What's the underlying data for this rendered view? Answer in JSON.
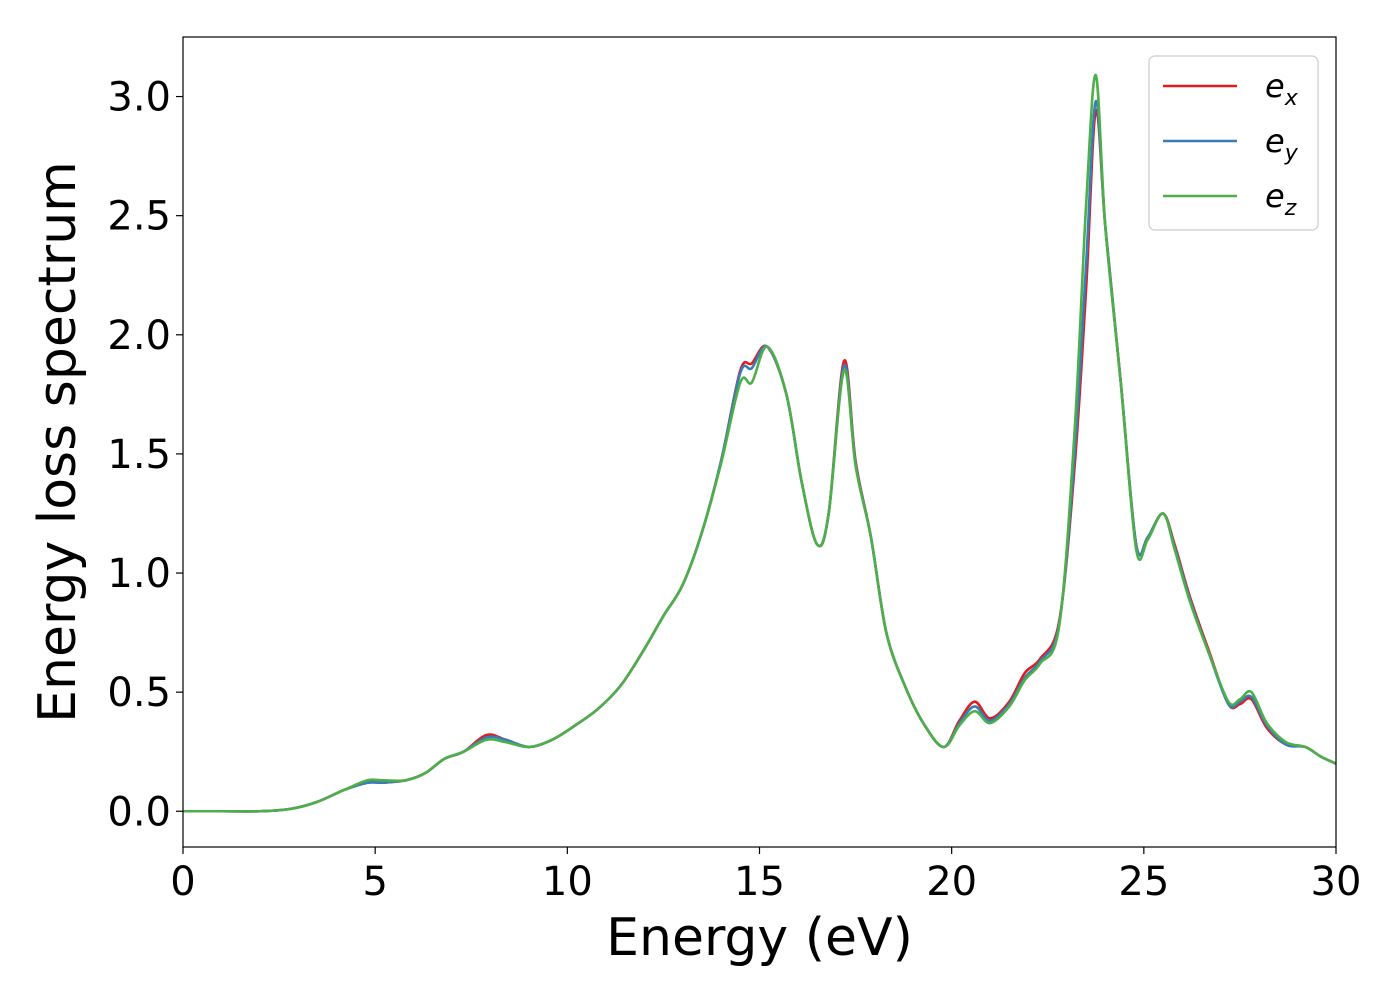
{
  "chart_data": {
    "type": "line",
    "xlabel": "Energy (eV)",
    "ylabel": "Energy loss spectrum",
    "xlim": [
      0,
      30
    ],
    "ylim": [
      -0.15,
      3.25
    ],
    "xticks": [
      "0",
      "5",
      "10",
      "15",
      "20",
      "25",
      "30"
    ],
    "yticks": [
      "0.0",
      "0.5",
      "1.0",
      "1.5",
      "2.0",
      "2.5",
      "3.0"
    ],
    "grid": false,
    "legend_position": "top-right",
    "series": [
      {
        "name": "e_x",
        "legend_base": "e",
        "legend_sub": "x",
        "color": "#e41a1c",
        "x": [
          0,
          1,
          2,
          2.8,
          3.5,
          4.2,
          4.8,
          5.2,
          5.8,
          6.3,
          6.8,
          7.3,
          7.9,
          8.4,
          9.0,
          9.6,
          10.2,
          10.8,
          11.4,
          12.0,
          12.5,
          13.0,
          13.5,
          14.0,
          14.5,
          14.8,
          15.2,
          15.7,
          16.1,
          16.5,
          16.8,
          17.2,
          17.5,
          17.9,
          18.3,
          18.8,
          19.3,
          19.8,
          20.2,
          20.6,
          21.0,
          21.5,
          21.9,
          22.3,
          22.8,
          23.2,
          23.5,
          23.75,
          24.0,
          24.4,
          24.8,
          25.1,
          25.5,
          25.8,
          26.2,
          26.7,
          27.2,
          27.5,
          27.8,
          28.2,
          28.7,
          29.2,
          29.6,
          30.0
        ],
        "y": [
          0.0,
          0.0,
          0.0,
          0.01,
          0.04,
          0.09,
          0.12,
          0.12,
          0.13,
          0.16,
          0.22,
          0.25,
          0.32,
          0.3,
          0.27,
          0.3,
          0.36,
          0.43,
          0.53,
          0.68,
          0.82,
          0.95,
          1.17,
          1.47,
          1.85,
          1.88,
          1.95,
          1.75,
          1.38,
          1.12,
          1.25,
          1.89,
          1.47,
          1.15,
          0.75,
          0.52,
          0.36,
          0.27,
          0.38,
          0.46,
          0.39,
          0.46,
          0.58,
          0.64,
          0.8,
          1.45,
          2.2,
          2.94,
          2.45,
          1.8,
          1.12,
          1.15,
          1.25,
          1.12,
          0.9,
          0.67,
          0.45,
          0.45,
          0.47,
          0.35,
          0.28,
          0.27,
          0.23,
          0.2
        ]
      },
      {
        "name": "e_y",
        "legend_base": "e",
        "legend_sub": "y",
        "color": "#377eb8",
        "x": [
          0,
          1,
          2,
          2.8,
          3.5,
          4.2,
          4.8,
          5.2,
          5.8,
          6.3,
          6.8,
          7.3,
          7.9,
          8.4,
          9.0,
          9.6,
          10.2,
          10.8,
          11.4,
          12.0,
          12.5,
          13.0,
          13.5,
          14.0,
          14.5,
          14.8,
          15.2,
          15.7,
          16.1,
          16.5,
          16.8,
          17.2,
          17.5,
          17.9,
          18.3,
          18.8,
          19.3,
          19.8,
          20.2,
          20.6,
          21.0,
          21.5,
          21.9,
          22.3,
          22.8,
          23.2,
          23.5,
          23.75,
          24.0,
          24.4,
          24.8,
          25.1,
          25.5,
          25.8,
          26.2,
          26.7,
          27.2,
          27.5,
          27.8,
          28.2,
          28.7,
          29.2,
          29.6,
          30.0
        ],
        "y": [
          0.0,
          0.0,
          0.0,
          0.01,
          0.04,
          0.09,
          0.12,
          0.12,
          0.13,
          0.16,
          0.22,
          0.25,
          0.31,
          0.3,
          0.27,
          0.3,
          0.36,
          0.43,
          0.53,
          0.68,
          0.82,
          0.95,
          1.17,
          1.47,
          1.84,
          1.86,
          1.95,
          1.75,
          1.38,
          1.12,
          1.25,
          1.87,
          1.46,
          1.15,
          0.75,
          0.52,
          0.36,
          0.27,
          0.37,
          0.44,
          0.38,
          0.45,
          0.56,
          0.63,
          0.79,
          1.5,
          2.3,
          2.98,
          2.45,
          1.8,
          1.12,
          1.15,
          1.25,
          1.11,
          0.89,
          0.66,
          0.45,
          0.46,
          0.48,
          0.36,
          0.28,
          0.27,
          0.23,
          0.2
        ]
      },
      {
        "name": "e_z",
        "legend_base": "e",
        "legend_sub": "z",
        "color": "#4daf4a",
        "x": [
          0,
          1,
          2,
          2.8,
          3.5,
          4.2,
          4.8,
          5.2,
          5.8,
          6.3,
          6.8,
          7.3,
          7.9,
          8.4,
          9.0,
          9.6,
          10.2,
          10.8,
          11.4,
          12.0,
          12.5,
          13.0,
          13.5,
          14.0,
          14.5,
          14.8,
          15.2,
          15.7,
          16.1,
          16.5,
          16.8,
          17.2,
          17.5,
          17.9,
          18.3,
          18.8,
          19.3,
          19.8,
          20.2,
          20.6,
          21.0,
          21.5,
          21.9,
          22.3,
          22.8,
          23.2,
          23.5,
          23.75,
          24.0,
          24.4,
          24.8,
          25.1,
          25.5,
          25.8,
          26.2,
          26.7,
          27.2,
          27.5,
          27.8,
          28.2,
          28.7,
          29.2,
          29.6,
          30.0
        ],
        "y": [
          0.0,
          0.0,
          0.0,
          0.01,
          0.04,
          0.09,
          0.13,
          0.13,
          0.13,
          0.16,
          0.22,
          0.25,
          0.3,
          0.29,
          0.27,
          0.3,
          0.36,
          0.43,
          0.53,
          0.68,
          0.82,
          0.95,
          1.17,
          1.46,
          1.8,
          1.8,
          1.95,
          1.75,
          1.38,
          1.12,
          1.25,
          1.85,
          1.45,
          1.15,
          0.75,
          0.52,
          0.36,
          0.27,
          0.36,
          0.42,
          0.37,
          0.44,
          0.55,
          0.62,
          0.78,
          1.6,
          2.55,
          3.09,
          2.45,
          1.8,
          1.1,
          1.14,
          1.25,
          1.1,
          0.88,
          0.66,
          0.46,
          0.47,
          0.5,
          0.37,
          0.29,
          0.27,
          0.23,
          0.2
        ]
      }
    ]
  }
}
